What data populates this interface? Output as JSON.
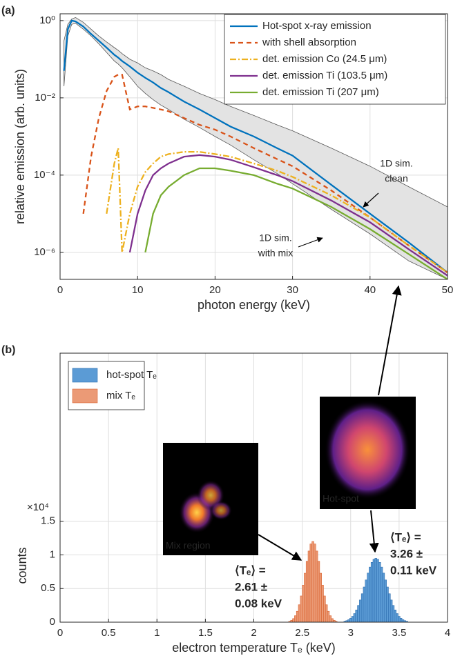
{
  "chart_data": [
    {
      "type": "line",
      "panel_label": "(a)",
      "x_label": "photon energy (keV)",
      "y_label": "relative emission (arb. units)",
      "log_y": true,
      "grid": true,
      "legend": "upper right",
      "xlim": [
        0,
        50
      ],
      "xticks": [
        0,
        10,
        20,
        30,
        40,
        50
      ],
      "ylim": [
        2e-07,
        1.5
      ],
      "yticks": [
        {
          "value": 1,
          "label": "10⁰"
        },
        {
          "value": 0.01,
          "label": "10⁻²"
        },
        {
          "value": 0.0001,
          "label": "10⁻⁴"
        },
        {
          "value": 1e-06,
          "label": "10⁻⁶"
        }
      ],
      "x": [
        0.5,
        1,
        1.5,
        2,
        3,
        4,
        5,
        6,
        7,
        7.5,
        8,
        9,
        10,
        11,
        12,
        13,
        14,
        16,
        18,
        20,
        22,
        25,
        28,
        30,
        35,
        40,
        45,
        50
      ],
      "band": {
        "color": "#e3e3e3",
        "upper": [
          0.3,
          0.8,
          1.1,
          1.2,
          0.9,
          0.6,
          0.4,
          0.28,
          0.2,
          0.17,
          0.14,
          0.1,
          0.08,
          0.06,
          0.05,
          0.04,
          0.03,
          0.02,
          0.013,
          0.009,
          0.006,
          0.0035,
          0.002,
          0.0014,
          0.0005,
          0.00017,
          5e-05,
          1.5e-05
        ],
        "lower": [
          0.02,
          0.4,
          0.8,
          0.85,
          0.6,
          0.4,
          0.25,
          0.15,
          0.09,
          0.075,
          0.06,
          0.035,
          0.02,
          0.013,
          0.009,
          0.0065,
          0.005,
          0.0028,
          0.0017,
          0.001,
          0.0006,
          0.00025,
          0.00011,
          6e-05,
          1.3e-05,
          3e-06,
          6e-07,
          2e-07
        ]
      },
      "series": [
        {
          "name": "Hot-spot x-ray emission",
          "color": "#0072bd",
          "line_style": "solid",
          "values": [
            0.05,
            0.6,
            1.0,
            0.95,
            0.7,
            0.45,
            0.3,
            0.2,
            0.13,
            0.11,
            0.09,
            0.065,
            0.045,
            0.033,
            0.025,
            0.018,
            0.014,
            0.008,
            0.005,
            0.003,
            0.0018,
            0.001,
            0.0005,
            0.00032,
            5.6e-05,
            1e-05,
            1.8e-06,
            3e-07
          ]
        },
        {
          "name": "with shell absorption",
          "color": "#d95319",
          "line_style": "dashed",
          "values": [
            null,
            null,
            null,
            null,
            1e-05,
            0.0003,
            0.003,
            0.015,
            0.035,
            0.04,
            0.04,
            0.005,
            0.006,
            0.006,
            0.0055,
            0.005,
            0.0045,
            0.003,
            0.002,
            0.0015,
            0.001,
            0.0005,
            0.00026,
            0.00017,
            4e-05,
            8e-06,
            1.5e-06,
            3e-07
          ]
        },
        {
          "name": "det. emission Co (24.5 μm)",
          "color": "#edb120",
          "line_style": "dashdot",
          "values": [
            null,
            null,
            null,
            null,
            null,
            null,
            null,
            1e-05,
            0.0002,
            0.0005,
            1e-06,
            1e-05,
            5e-05,
            0.00012,
            0.0002,
            0.0003,
            0.00035,
            0.0004,
            0.0004,
            0.00035,
            0.0003,
            0.0002,
            0.00013,
            9e-05,
            3e-05,
            8e-06,
            1.5e-06,
            3e-07
          ]
        },
        {
          "name": "det. emission Ti (103.5 μm)",
          "color": "#7e2f8e",
          "line_style": "solid",
          "values": [
            null,
            null,
            null,
            null,
            null,
            null,
            null,
            null,
            null,
            null,
            null,
            1e-06,
            1e-05,
            4e-05,
            0.0001,
            0.00015,
            0.0002,
            0.0003,
            0.00033,
            0.0003,
            0.00025,
            0.00016,
            0.0001,
            7e-05,
            2.2e-05,
            6e-06,
            1.2e-06,
            2.5e-07
          ]
        },
        {
          "name": "det. emission Ti (207 μm)",
          "color": "#77ac30",
          "line_style": "solid",
          "values": [
            null,
            null,
            null,
            null,
            null,
            null,
            null,
            null,
            null,
            null,
            null,
            null,
            null,
            1e-06,
            1e-05,
            3e-05,
            5e-05,
            0.0001,
            0.00015,
            0.00015,
            0.00013,
            0.0001,
            6e-05,
            4.5e-05,
            1.5e-05,
            4e-06,
            9e-07,
            2e-07
          ]
        }
      ],
      "annotations": [
        {
          "lines": [
            "1D sim.",
            "clean"
          ]
        },
        {
          "lines": [
            "1D sim.",
            "with mix"
          ]
        }
      ]
    },
    {
      "type": "histogram",
      "panel_label": "(b)",
      "x_label": "electron temperature Tₑ (keV)",
      "y_label": "counts",
      "y_multiplier": "×10⁴",
      "grid": true,
      "legend": "upper left",
      "xlim": [
        0,
        4
      ],
      "xticks": [
        0,
        0.5,
        1,
        1.5,
        2,
        2.5,
        3,
        3.5,
        4
      ],
      "ylim": [
        0,
        4
      ],
      "yticks": [
        0,
        0.5,
        1,
        1.5
      ],
      "series": [
        {
          "name": "hot-spot Tₑ",
          "color": "#5b9bd5",
          "edge_color": "#2f6fb0",
          "bins": [
            2.93,
            2.95,
            2.97,
            2.99,
            3.01,
            3.03,
            3.05,
            3.07,
            3.09,
            3.11,
            3.13,
            3.15,
            3.17,
            3.19,
            3.21,
            3.23,
            3.25,
            3.27,
            3.29,
            3.31,
            3.33,
            3.35,
            3.37,
            3.39,
            3.41,
            3.43,
            3.45,
            3.47,
            3.49,
            3.51,
            3.53,
            3.55,
            3.57,
            3.59
          ],
          "values": [
            0.014,
            0.023,
            0.037,
            0.058,
            0.087,
            0.128,
            0.182,
            0.249,
            0.33,
            0.423,
            0.523,
            0.628,
            0.73,
            0.819,
            0.889,
            0.935,
            0.95,
            0.935,
            0.889,
            0.819,
            0.73,
            0.628,
            0.523,
            0.423,
            0.33,
            0.249,
            0.182,
            0.128,
            0.087,
            0.058,
            0.037,
            0.023,
            0.014
          ]
        },
        {
          "name": "mix Tₑ",
          "color": "#eb9a76",
          "edge_color": "#d9622e",
          "bins": [
            2.36,
            2.38,
            2.4,
            2.42,
            2.44,
            2.46,
            2.48,
            2.5,
            2.52,
            2.54,
            2.56,
            2.58,
            2.6,
            2.62,
            2.64,
            2.66,
            2.68,
            2.7,
            2.72,
            2.74,
            2.76,
            2.78,
            2.8,
            2.82,
            2.84,
            2.86
          ],
          "values": [
            0.013,
            0.028,
            0.053,
            0.096,
            0.162,
            0.259,
            0.39,
            0.55,
            0.728,
            0.906,
            1.058,
            1.163,
            1.2,
            1.163,
            1.058,
            0.906,
            0.728,
            0.55,
            0.39,
            0.259,
            0.162,
            0.096,
            0.053,
            0.028,
            0.013
          ]
        }
      ],
      "annotations": [
        {
          "lines": [
            "⟨Tₑ⟩ =",
            "2.61 ±",
            "0.08 keV"
          ],
          "color": "#e07b39"
        },
        {
          "lines": [
            "⟨Tₑ⟩ =",
            "3.26 ±",
            "0.11 keV"
          ],
          "color": "#4a7fc9"
        }
      ],
      "inset_labels": [
        "Mix region",
        "Hot-spot"
      ]
    }
  ]
}
